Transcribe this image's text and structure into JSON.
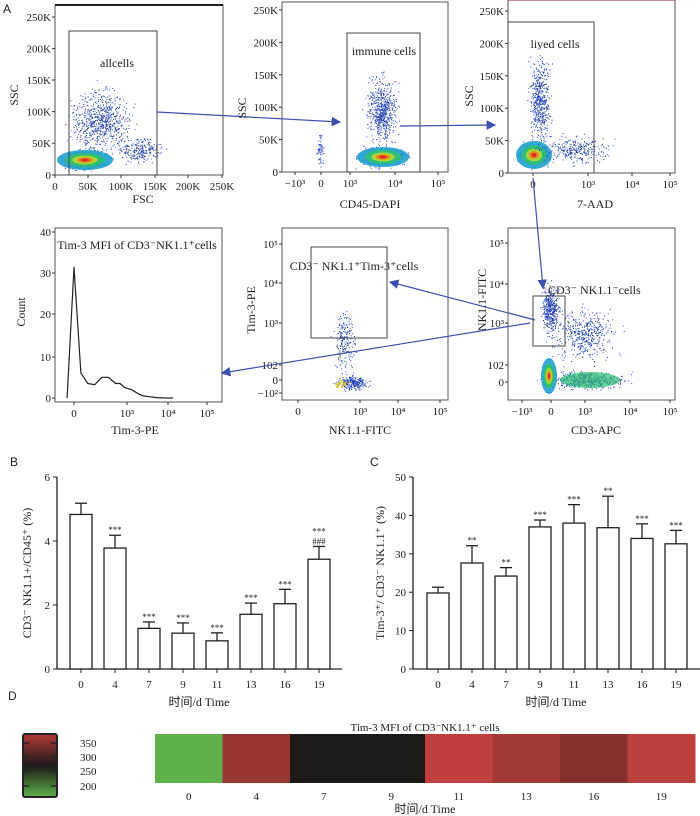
{
  "panel_labels": {
    "a": "A",
    "b": "B",
    "c": "C",
    "d": "D"
  },
  "flow": {
    "p1": {
      "ylabel": "SSC",
      "xlabel": "FSC",
      "gate": "allcells",
      "yticks": [
        "250K",
        "200K",
        "150K",
        "100K",
        "50K",
        "0"
      ],
      "xticks": [
        "0",
        "50K",
        "100K",
        "150K",
        "200K",
        "250K"
      ]
    },
    "p2": {
      "ylabel": "SSC",
      "xlabel": "CD45-DAPI",
      "gate": "immune cells",
      "yticks": [
        "250K",
        "200K",
        "150K",
        "100K",
        "50K",
        "0"
      ],
      "xticks": [
        "−10³",
        "0",
        "10³",
        "10⁴",
        "10⁵"
      ]
    },
    "p3": {
      "ylabel": "SSC",
      "xlabel": "7-AAD",
      "gate": "lived cells",
      "yticks": [
        "250K",
        "200K",
        "150K",
        "100K",
        "50K",
        "0"
      ],
      "xticks": [
        "0",
        "10³",
        "10⁴",
        "10⁵"
      ]
    },
    "p4": {
      "ylabel": "Count",
      "xlabel": "Tim-3-PE",
      "title": "Tim-3 MFI of CD3⁻NK1.1⁺cells",
      "yticks": [
        "40",
        "30",
        "20",
        "10",
        "0"
      ],
      "xticks": [
        "0",
        "10³",
        "10⁴",
        "10⁵"
      ]
    },
    "p5": {
      "ylabel": "Tim-3-PE",
      "xlabel": "NK1.1-FITC",
      "gate": "CD3⁻ NK1.1⁺Tim-3⁺cells",
      "yticks": [
        "10⁵",
        "10⁴",
        "10³",
        "102",
        "0",
        "−10²"
      ],
      "xticks": [
        "0",
        "10³",
        "10⁴",
        "10⁵"
      ]
    },
    "p6": {
      "ylabel": "NK1.1-FITC",
      "xlabel": "CD3-APC",
      "gate": "CD3⁻ NK1.1⁻cells",
      "yticks": [
        "10⁵",
        "10⁴",
        "10³",
        "102",
        "0"
      ],
      "xticks": [
        "−10³",
        "0",
        "10³",
        "10⁴",
        "10⁵"
      ]
    }
  },
  "chart_data": [
    {
      "type": "histogram",
      "title": "Tim-3 MFI of CD3⁻NK1.1⁺cells",
      "xlabel": "Tim-3-PE",
      "ylabel": "Count",
      "ylim": [
        0,
        40
      ],
      "x_decades": [
        -0.5,
        0,
        0.3,
        0.6,
        0.9,
        1.2,
        1.5,
        1.8,
        2.0,
        2.2,
        2.5,
        2.8,
        3.0,
        3.3,
        3.6,
        4.0,
        4.3
      ],
      "counts": [
        0,
        31.5,
        6,
        3.5,
        3.2,
        5,
        5,
        3.5,
        3.5,
        2.5,
        2,
        1,
        0.5,
        0.3,
        0.1,
        0,
        0
      ]
    },
    {
      "type": "bar",
      "title": "",
      "categories": [
        "0",
        "4",
        "7",
        "9",
        "11",
        "13",
        "16",
        "19"
      ],
      "values": [
        4.83,
        3.78,
        1.27,
        1.12,
        0.88,
        1.71,
        2.04,
        3.43
      ],
      "errors": [
        0.35,
        0.4,
        0.2,
        0.32,
        0.25,
        0.35,
        0.45,
        0.4
      ],
      "annotations": [
        "",
        "***",
        "***",
        "***",
        "***",
        "***",
        "***",
        "***\n###"
      ],
      "xlabel": "时间/d  Time",
      "ylabel": "CD3⁻ NK1.1+/CD45⁺ (%)",
      "yticks": [
        "0",
        "2",
        "4",
        "6"
      ],
      "ylim": [
        0,
        6
      ]
    },
    {
      "type": "bar",
      "title": "",
      "categories": [
        "0",
        "4",
        "7",
        "9",
        "11",
        "13",
        "16",
        "19"
      ],
      "values": [
        19.8,
        27.6,
        24.2,
        37.0,
        38.0,
        36.8,
        34.0,
        32.6
      ],
      "errors": [
        1.5,
        4.5,
        2.2,
        1.8,
        4.8,
        8.2,
        3.8,
        3.5
      ],
      "annotations": [
        "",
        "**",
        "**",
        "***",
        "***",
        "**",
        "***",
        "***"
      ],
      "xlabel": "时间/d  Time",
      "ylabel": "Tim-3⁺/ CD3⁻ NK1.1⁺ (%)",
      "yticks": [
        "0",
        "10",
        "20",
        "30",
        "40",
        "50"
      ],
      "ylim": [
        0,
        50
      ]
    },
    {
      "type": "heatmap",
      "title": "Tim-3 MFI of CD3⁻NK1.1⁺ cells",
      "categories": [
        "0",
        "4",
        "7",
        "9",
        "11",
        "13",
        "16",
        "19"
      ],
      "values": [
        190,
        330,
        255,
        255,
        365,
        335,
        315,
        360
      ],
      "colors": [
        "#5fb04a",
        "#9a3632",
        "#1c1917",
        "#1c1917",
        "#c0403f",
        "#a13a34",
        "#86312d",
        "#bc403e"
      ],
      "xlabel": "时间/d  Time",
      "colorbar_ticks": [
        "350",
        "300",
        "250",
        "200"
      ],
      "colorbar_range": [
        190,
        370
      ],
      "colorbar_colors": [
        "#b23a36",
        "#1c1917",
        "#5fb04a"
      ]
    }
  ]
}
